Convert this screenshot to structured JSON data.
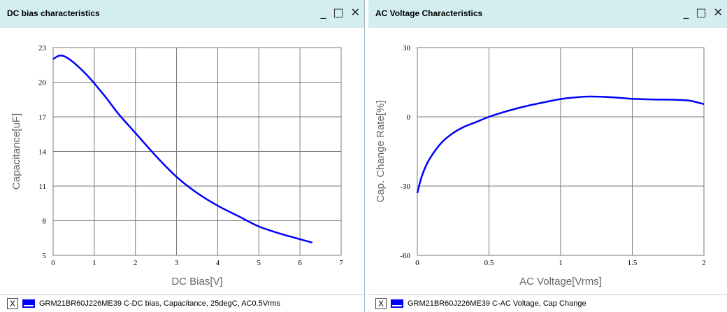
{
  "colors": {
    "curve": "#0000ff",
    "titlebar": "#d3edf0",
    "grid": "#7a7a7a"
  },
  "window_controls": {
    "minimize": "_",
    "maximize": "□",
    "close": "✕"
  },
  "panels": [
    {
      "title": "DC bias characteristics",
      "legend": "GRM21BR60J226ME39  C-DC bias, Capacitance, 25degC, AC0.5Vrms",
      "legend_close": "X"
    },
    {
      "title": "AC Voltage Characteristics",
      "legend": "GRM21BR60J226ME39  C-AC Voltage, Cap Change",
      "legend_close": "X"
    }
  ],
  "chart_data": [
    {
      "type": "line",
      "xlabel": "DC Bias[V]",
      "ylabel": "Capacitance[uF]",
      "xlim": [
        0,
        7
      ],
      "ylim": [
        5,
        23
      ],
      "xticks": [
        "0",
        "1",
        "2",
        "3",
        "4",
        "5",
        "6",
        "7"
      ],
      "yticks": [
        "5",
        "8",
        "11",
        "14",
        "17",
        "20",
        "23"
      ],
      "grid": true,
      "series": [
        {
          "x": [
            0,
            0.15,
            0.3,
            0.5,
            0.8,
            1.0,
            1.3,
            1.6,
            2.0,
            2.5,
            3.0,
            3.5,
            4.0,
            4.5,
            5.0,
            5.5,
            6.0,
            6.3
          ],
          "y": [
            22.0,
            22.3,
            22.2,
            21.7,
            20.7,
            19.9,
            18.6,
            17.2,
            15.6,
            13.6,
            11.8,
            10.4,
            9.3,
            8.4,
            7.5,
            6.9,
            6.4,
            6.1
          ]
        }
      ]
    },
    {
      "type": "line",
      "xlabel": "AC Voltage[Vrms]",
      "ylabel": "Cap. Change Rate[%]",
      "xlim": [
        0,
        2
      ],
      "ylim": [
        -60,
        30
      ],
      "xticks": [
        "0",
        "0.5",
        "1",
        "1.5",
        "2"
      ],
      "yticks": [
        "-60",
        "-30",
        "0",
        "30"
      ],
      "grid": true,
      "series": [
        {
          "x": [
            0,
            0.03,
            0.07,
            0.12,
            0.18,
            0.25,
            0.32,
            0.4,
            0.5,
            0.6,
            0.75,
            0.9,
            1.0,
            1.1,
            1.2,
            1.35,
            1.5,
            1.65,
            1.8,
            1.9,
            1.95,
            2.0
          ],
          "y": [
            -33,
            -26,
            -20,
            -15,
            -10.5,
            -7,
            -4.5,
            -2.5,
            0,
            2,
            4.5,
            6.5,
            7.7,
            8.4,
            8.8,
            8.5,
            7.8,
            7.5,
            7.4,
            7.0,
            6.3,
            5.5
          ]
        }
      ]
    }
  ]
}
